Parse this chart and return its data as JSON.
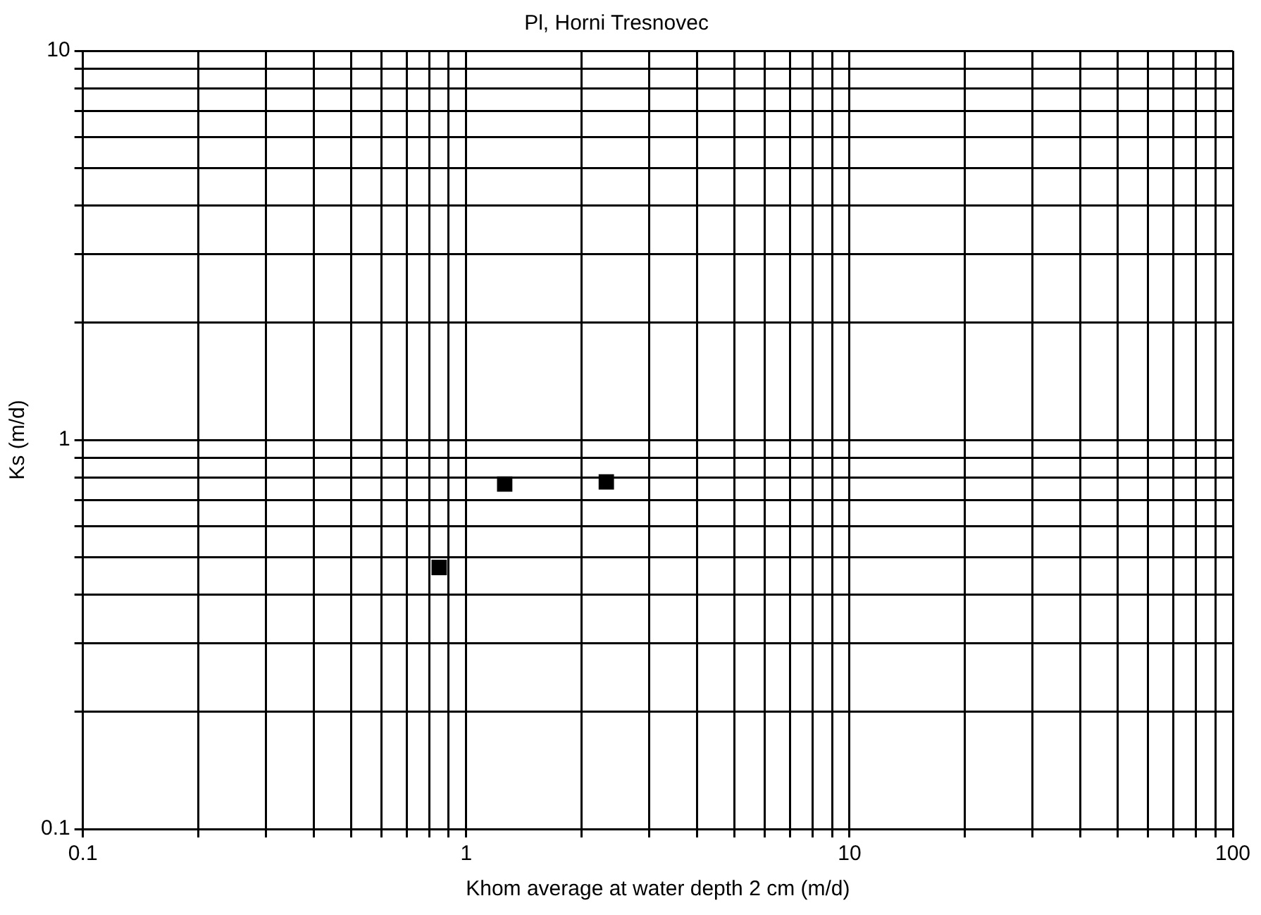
{
  "chart_data": {
    "type": "scatter",
    "title": "Pl, Horni Tresnovec",
    "xlabel": "Khom average at water depth 2 cm (m/d)",
    "ylabel": "Ks (m/d)",
    "log": "xy",
    "grid": true,
    "legend": false,
    "marker": "square",
    "xlim": [
      0.1,
      100
    ],
    "ylim": [
      0.1,
      10
    ],
    "xticks": [
      0.1,
      {
        "value": 0.2,
        "label": null
      },
      {
        "value": 0.3,
        "label": null
      },
      {
        "value": 0.4,
        "label": null
      },
      {
        "value": 0.5,
        "label": null
      },
      {
        "value": 0.6,
        "label": null
      },
      {
        "value": 0.7,
        "label": null
      },
      {
        "value": 0.8,
        "label": null
      },
      {
        "value": 0.9,
        "label": null
      },
      1,
      {
        "value": 2,
        "label": null
      },
      {
        "value": 3,
        "label": null
      },
      {
        "value": 4,
        "label": null
      },
      {
        "value": 5,
        "label": null
      },
      {
        "value": 6,
        "label": null
      },
      {
        "value": 7,
        "label": null
      },
      {
        "value": 8,
        "label": null
      },
      {
        "value": 9,
        "label": null
      },
      10,
      {
        "value": 20,
        "label": null
      },
      {
        "value": 30,
        "label": null
      },
      {
        "value": 40,
        "label": null
      },
      {
        "value": 50,
        "label": null
      },
      {
        "value": 60,
        "label": null
      },
      {
        "value": 70,
        "label": null
      },
      {
        "value": 80,
        "label": null
      },
      {
        "value": 90,
        "label": null
      },
      100
    ],
    "yticks": [
      0.1,
      {
        "value": 0.2,
        "label": null
      },
      {
        "value": 0.3,
        "label": null
      },
      {
        "value": 0.4,
        "label": null
      },
      {
        "value": 0.5,
        "label": null
      },
      {
        "value": 0.6,
        "label": null
      },
      {
        "value": 0.7,
        "label": null
      },
      {
        "value": 0.8,
        "label": null
      },
      {
        "value": 0.9,
        "label": null
      },
      1,
      {
        "value": 2,
        "label": null
      },
      {
        "value": 3,
        "label": null
      },
      {
        "value": 4,
        "label": null
      },
      {
        "value": 5,
        "label": null
      },
      {
        "value": 6,
        "label": null
      },
      {
        "value": 7,
        "label": null
      },
      {
        "value": 8,
        "label": null
      },
      {
        "value": 9,
        "label": null
      },
      10
    ],
    "x": [
      0.85,
      1.26,
      2.32
    ],
    "series": [
      {
        "color": "#000000",
        "values": [
          0.47,
          0.77,
          0.78
        ]
      }
    ]
  }
}
